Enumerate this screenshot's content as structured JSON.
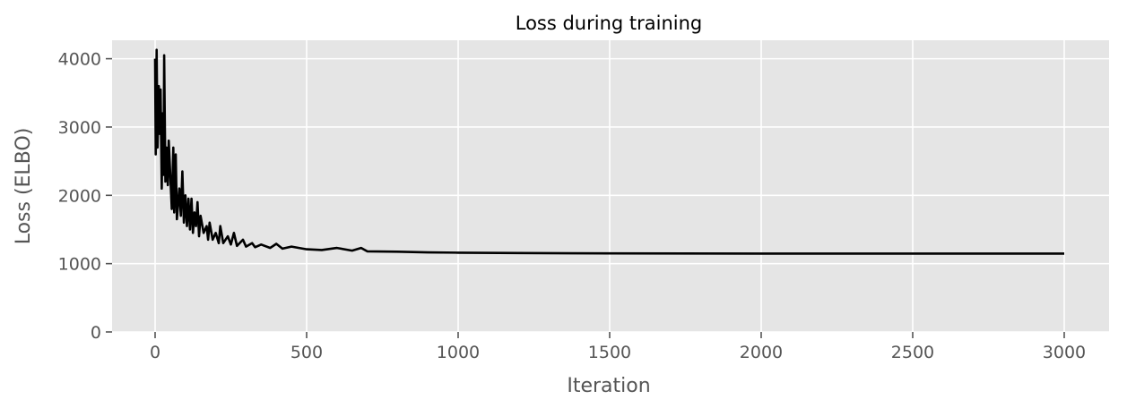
{
  "chart_data": {
    "type": "line",
    "title": "Loss during training",
    "xlabel": "Iteration",
    "ylabel": "Loss (ELBO)",
    "xlim": [
      -142,
      3148
    ],
    "ylim": [
      0,
      4270
    ],
    "xticks": [
      0,
      500,
      1000,
      1500,
      2000,
      2500,
      3000
    ],
    "yticks": [
      0,
      1000,
      2000,
      3000,
      4000
    ],
    "grid": true,
    "style": "ggplot",
    "colors": {
      "background": "#e5e5e5",
      "grid": "#ffffff",
      "line": "#000000"
    },
    "series": [
      {
        "x": [
          0,
          2,
          5,
          8,
          12,
          15,
          18,
          22,
          25,
          28,
          30,
          34,
          38,
          42,
          45,
          50,
          55,
          60,
          63,
          68,
          72,
          80,
          85,
          90,
          95,
          100,
          105,
          110,
          115,
          120,
          125,
          130,
          135,
          140,
          145,
          150,
          160,
          170,
          175,
          180,
          190,
          200,
          210,
          215,
          225,
          240,
          250,
          260,
          270,
          290,
          300,
          320,
          330,
          350,
          380,
          400,
          420,
          450,
          500,
          550,
          600,
          650,
          680,
          700,
          800,
          900,
          1000,
          1200,
          1500,
          2000,
          2500,
          3000
        ],
        "y": [
          4000,
          2600,
          4130,
          2700,
          3600,
          2900,
          3550,
          2100,
          3200,
          2300,
          4050,
          2200,
          2700,
          2150,
          2800,
          2300,
          1800,
          2700,
          1750,
          2600,
          1650,
          2100,
          1700,
          2350,
          1600,
          2000,
          1550,
          1950,
          1500,
          1950,
          1450,
          1750,
          1550,
          1900,
          1400,
          1700,
          1450,
          1550,
          1350,
          1600,
          1350,
          1450,
          1300,
          1550,
          1300,
          1400,
          1280,
          1450,
          1260,
          1350,
          1250,
          1300,
          1240,
          1280,
          1230,
          1290,
          1220,
          1250,
          1210,
          1200,
          1230,
          1190,
          1230,
          1180,
          1175,
          1165,
          1160,
          1155,
          1150,
          1148,
          1147,
          1147
        ]
      }
    ]
  }
}
